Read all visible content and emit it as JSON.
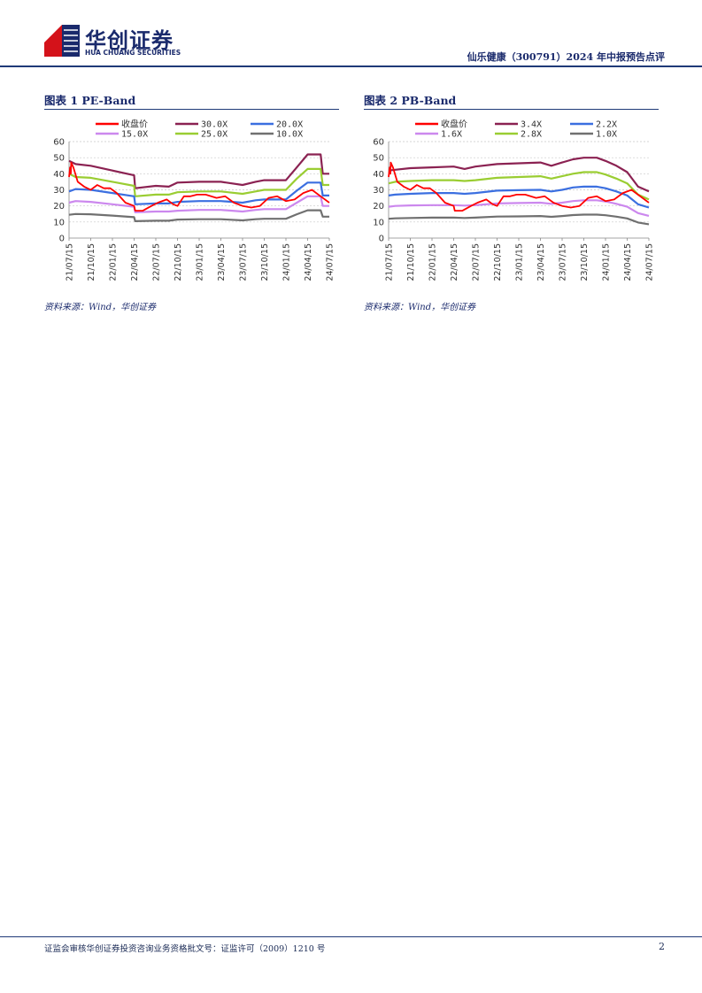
{
  "header": {
    "brand_cn": "华创证券",
    "brand_en": "HUA CHUANG SECURITIES",
    "report_title": "仙乐健康（300791）2024 年中报预告点评"
  },
  "colors": {
    "primary": "#1a2a6c",
    "close": "#ff0000",
    "band1": "#8b2252",
    "band2": "#9acd32",
    "band3": "#3b6fe0",
    "band4": "#cc88ee",
    "band5": "#707070"
  },
  "figure1": {
    "title": "图表 1   PE-Band",
    "source": "资料来源：Wind，华创证券"
  },
  "figure2": {
    "title": "图表 2   PB-Band",
    "source": "资料来源：Wind，华创证券"
  },
  "footer": {
    "text": "证监会审核华创证券投资咨询业务资格批文号：证监许可（2009）1210 号",
    "page": "2"
  },
  "chart_data": [
    {
      "type": "line",
      "title": "PE-Band",
      "x_ticks": [
        "21/07/15",
        "21/10/15",
        "22/01/15",
        "22/04/15",
        "22/07/15",
        "22/10/15",
        "23/01/15",
        "23/04/15",
        "23/07/15",
        "23/10/15",
        "24/01/15",
        "24/04/15",
        "24/07/15"
      ],
      "ylim": [
        0,
        60
      ],
      "y_ticks": [
        0,
        10,
        20,
        30,
        40,
        50,
        60
      ],
      "grid": true,
      "legend_position": "top",
      "legend": [
        "收盘价",
        "30.0X",
        "20.0X",
        "15.0X",
        "25.0X",
        "10.0X"
      ],
      "series": [
        {
          "name": "收盘价",
          "color": "#ff0000",
          "x": [
            0,
            0.05,
            0.08,
            0.1,
            0.2,
            0.4,
            0.7,
            1.0,
            1.3,
            1.6,
            1.9,
            2.2,
            2.6,
            3.0,
            3.05,
            3.4,
            3.8,
            4.1,
            4.5,
            4.8,
            5.0,
            5.3,
            5.6,
            5.9,
            6.3,
            6.8,
            7.2,
            7.6,
            8.0,
            8.4,
            8.8,
            9.2,
            9.6,
            10.0,
            10.4,
            10.8,
            11.2,
            11.6,
            12.0
          ],
          "y": [
            38,
            44,
            40,
            47,
            44,
            35,
            32,
            30,
            33,
            31,
            31,
            28,
            22,
            20,
            17,
            17,
            20,
            22,
            24,
            21,
            20,
            26,
            26,
            27,
            27,
            25,
            26,
            22,
            20,
            19,
            20,
            25,
            26,
            23,
            24,
            28,
            30,
            26,
            22
          ]
        },
        {
          "name": "30.0X",
          "color": "#8b2252",
          "x": [
            0,
            0.3,
            1,
            2,
            3,
            3.05,
            4,
            4.6,
            5,
            6,
            7,
            8,
            8.6,
            9,
            10,
            10.5,
            11,
            11.6,
            11.7,
            12
          ],
          "y": [
            48,
            46,
            45,
            42,
            39,
            31,
            32.5,
            32,
            34.5,
            35,
            35,
            33,
            35,
            36,
            36,
            44,
            52,
            52,
            40,
            40
          ]
        },
        {
          "name": "25.0X",
          "color": "#9acd32",
          "x": [
            0,
            0.3,
            1,
            2,
            3,
            3.05,
            4,
            4.6,
            5,
            6,
            7,
            8,
            8.6,
            9,
            10,
            10.5,
            11,
            11.6,
            11.7,
            12
          ],
          "y": [
            40,
            38,
            37.5,
            35,
            32.5,
            26,
            27,
            27,
            28.5,
            29,
            29,
            27.5,
            29,
            30,
            30,
            37,
            43,
            43,
            33,
            33
          ]
        },
        {
          "name": "20.0X",
          "color": "#3b6fe0",
          "x": [
            0,
            0.3,
            1,
            2,
            3,
            3.05,
            4,
            4.6,
            5,
            6,
            7,
            8,
            8.6,
            9,
            10,
            10.5,
            11,
            11.6,
            11.7,
            12
          ],
          "y": [
            29,
            30.5,
            30,
            28,
            26,
            21,
            21.5,
            21.5,
            22.5,
            23,
            23,
            22,
            23.5,
            24,
            24,
            29.5,
            34.5,
            34.5,
            26.5,
            26.5
          ]
        },
        {
          "name": "15.0X",
          "color": "#cc88ee",
          "x": [
            0,
            0.3,
            1,
            2,
            3,
            3.05,
            4,
            4.6,
            5,
            6,
            7,
            8,
            8.6,
            9,
            10,
            10.5,
            11,
            11.6,
            11.7,
            12
          ],
          "y": [
            22,
            23,
            22.5,
            21,
            19.5,
            16,
            16.5,
            16.5,
            17,
            17.5,
            17.5,
            16.5,
            17.5,
            18,
            18,
            22,
            26,
            26,
            20,
            20
          ]
        },
        {
          "name": "10.0X",
          "color": "#707070",
          "x": [
            0,
            0.3,
            1,
            2,
            3,
            3.05,
            4,
            4.6,
            5,
            6,
            7,
            8,
            8.6,
            9,
            10,
            10.5,
            11,
            11.6,
            11.7,
            12
          ],
          "y": [
            14.5,
            15,
            14.8,
            14,
            13,
            10.5,
            10.8,
            10.8,
            11.5,
            11.7,
            11.7,
            11,
            11.7,
            12,
            12,
            14.8,
            17.3,
            17.3,
            13.3,
            13.3
          ]
        }
      ]
    },
    {
      "type": "line",
      "title": "PB-Band",
      "x_ticks": [
        "21/07/15",
        "21/10/15",
        "22/01/15",
        "22/04/15",
        "22/07/15",
        "22/10/15",
        "23/01/15",
        "23/04/15",
        "23/07/15",
        "23/10/15",
        "24/01/15",
        "24/04/15",
        "24/07/15"
      ],
      "ylim": [
        0,
        60
      ],
      "y_ticks": [
        0,
        10,
        20,
        30,
        40,
        50,
        60
      ],
      "grid": true,
      "legend_position": "top",
      "legend": [
        "收盘价",
        "3.4X",
        "2.2X",
        "1.6X",
        "2.8X",
        "1.0X"
      ],
      "series": [
        {
          "name": "收盘价",
          "color": "#ff0000",
          "x": [
            0,
            0.05,
            0.08,
            0.1,
            0.2,
            0.4,
            0.7,
            1.0,
            1.3,
            1.6,
            1.9,
            2.2,
            2.6,
            3.0,
            3.05,
            3.4,
            3.8,
            4.1,
            4.5,
            4.8,
            5.0,
            5.3,
            5.6,
            5.9,
            6.3,
            6.8,
            7.2,
            7.6,
            8.0,
            8.4,
            8.8,
            9.2,
            9.6,
            10.0,
            10.4,
            10.8,
            11.2,
            11.6,
            12.0
          ],
          "y": [
            38,
            44,
            40,
            47,
            44,
            35,
            32,
            30,
            33,
            31,
            31,
            28,
            22,
            20,
            17,
            17,
            20,
            22,
            24,
            21,
            20,
            26,
            26,
            27,
            27,
            25,
            26,
            22,
            20,
            19,
            20,
            25,
            26,
            23,
            24,
            28,
            30,
            26,
            22
          ]
        },
        {
          "name": "3.4X",
          "color": "#8b2252",
          "x": [
            0,
            0.3,
            1,
            2,
            3,
            3.5,
            4,
            5,
            6,
            7,
            7.5,
            8,
            8.5,
            9,
            9.6,
            10,
            10.5,
            11,
            11.5,
            12
          ],
          "y": [
            42,
            42.5,
            43.5,
            44,
            44.5,
            43,
            44.5,
            46,
            46.5,
            47,
            45,
            47,
            49,
            50,
            50,
            48,
            45,
            41,
            32,
            29
          ]
        },
        {
          "name": "2.8X",
          "color": "#9acd32",
          "x": [
            0,
            0.3,
            1,
            2,
            3,
            3.5,
            4,
            5,
            6,
            7,
            7.5,
            8,
            8.5,
            9,
            9.6,
            10,
            10.5,
            11,
            11.5,
            12
          ],
          "y": [
            34,
            35,
            35.5,
            36,
            36,
            35.5,
            36,
            37.5,
            38,
            38.5,
            37,
            38.5,
            40,
            41,
            41,
            39.5,
            37,
            34,
            27,
            24
          ]
        },
        {
          "name": "2.2X",
          "color": "#3b6fe0",
          "x": [
            0,
            0.3,
            1,
            2,
            3,
            3.5,
            4,
            5,
            6,
            7,
            7.5,
            8,
            8.5,
            9,
            9.6,
            10,
            10.5,
            11,
            11.5,
            12
          ],
          "y": [
            26.5,
            27,
            27.5,
            28,
            28,
            27.5,
            28,
            29.5,
            29.8,
            30,
            29,
            30,
            31.5,
            32,
            32,
            31,
            29,
            26.5,
            21,
            19
          ]
        },
        {
          "name": "1.6X",
          "color": "#cc88ee",
          "x": [
            0,
            0.3,
            1,
            2,
            3,
            3.5,
            4,
            5,
            6,
            7,
            7.5,
            8,
            8.5,
            9,
            9.6,
            10,
            10.5,
            11,
            11.5,
            12
          ],
          "y": [
            19.5,
            20,
            20.3,
            20.5,
            20.5,
            20.2,
            20.5,
            21.5,
            21.8,
            22,
            21.3,
            22,
            23,
            23.5,
            23.5,
            22.8,
            21.3,
            19.5,
            15.5,
            13.8
          ]
        },
        {
          "name": "1.0X",
          "color": "#707070",
          "x": [
            0,
            0.3,
            1,
            2,
            3,
            3.5,
            4,
            5,
            6,
            7,
            7.5,
            8,
            8.5,
            9,
            9.6,
            10,
            10.5,
            11,
            11.5,
            12
          ],
          "y": [
            12,
            12.3,
            12.5,
            12.7,
            12.7,
            12.5,
            12.7,
            13.4,
            13.5,
            13.7,
            13.2,
            13.7,
            14.3,
            14.6,
            14.6,
            14.2,
            13.3,
            12.2,
            9.7,
            8.6
          ]
        }
      ]
    }
  ]
}
